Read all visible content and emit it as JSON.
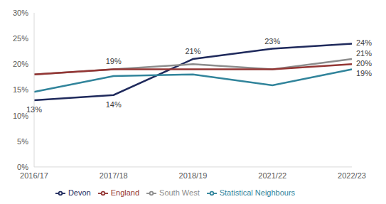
{
  "chart_data": {
    "type": "line",
    "categories": [
      "2016/17",
      "2017/18",
      "2018/19",
      "2021/22",
      "2022/23"
    ],
    "series": [
      {
        "name": "Devon",
        "color": "#1f2a5c",
        "values": [
          13,
          14,
          21,
          23,
          24
        ],
        "value_labels": [
          "13%",
          "14%",
          "21%",
          "23%",
          "24%"
        ]
      },
      {
        "name": "South West",
        "color": "#8c8c8c",
        "values": [
          18,
          19,
          20,
          19,
          21
        ],
        "value_labels": [
          null,
          "19%",
          null,
          null,
          "21%"
        ]
      },
      {
        "name": "England",
        "color": "#943634",
        "values": [
          18,
          19,
          19,
          19,
          20
        ],
        "value_labels": [
          null,
          null,
          null,
          null,
          "20%"
        ]
      },
      {
        "name": "Statistical Neighbours",
        "color": "#31849b",
        "values": [
          14.6,
          17.7,
          18,
          15.9,
          19
        ],
        "value_labels": [
          null,
          null,
          null,
          null,
          "19%"
        ]
      }
    ],
    "ylim": [
      0,
      30
    ],
    "yticks": [
      {
        "value": 0,
        "label": "0%"
      },
      {
        "value": 5,
        "label": "5%"
      },
      {
        "value": 10,
        "label": "10%"
      },
      {
        "value": 15,
        "label": "15%"
      },
      {
        "value": 20,
        "label": "20%"
      },
      {
        "value": 25,
        "label": "25%"
      },
      {
        "value": 30,
        "label": "30%"
      }
    ],
    "grid": false,
    "legend": "bottom",
    "data_labels": true
  }
}
